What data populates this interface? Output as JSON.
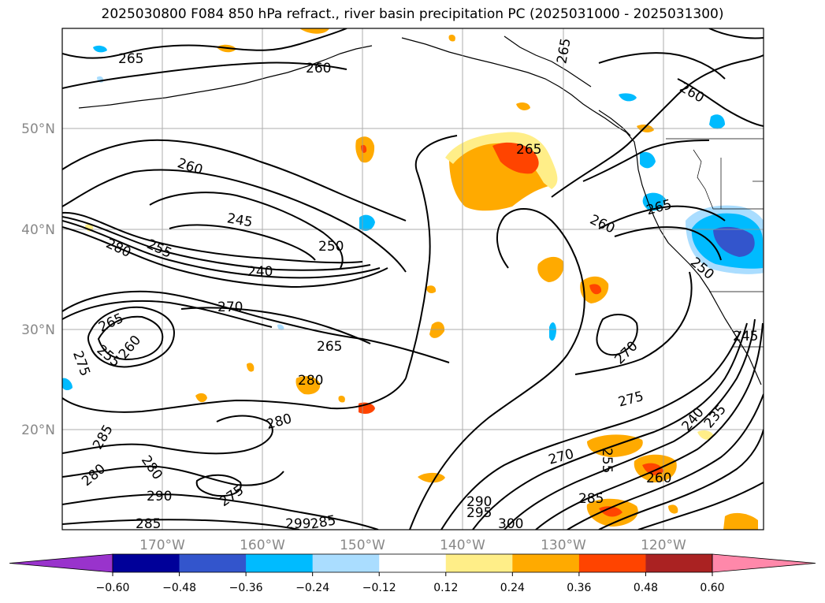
{
  "title": "2025030800 F084 850 hPa refract., river basin precipitation PC (2025031000 - 2025031300)",
  "lat_ticks": [
    "50°N",
    "40°N",
    "30°N",
    "20°N"
  ],
  "lon_ticks": [
    "170°W",
    "160°W",
    "150°W",
    "140°W",
    "130°W",
    "120°W"
  ],
  "contour_labels": [
    "265",
    "260",
    "265",
    "260",
    "260",
    "265",
    "245",
    "250",
    "240",
    "280",
    "255",
    "270",
    "265",
    "260",
    "265",
    "275",
    "255",
    "265",
    "280",
    "260",
    "250",
    "270",
    "245",
    "275",
    "280",
    "240",
    "235",
    "285",
    "280",
    "280",
    "290",
    "275",
    "270",
    "255",
    "260",
    "285",
    "290",
    "295",
    "285",
    "285",
    "299",
    "300"
  ],
  "colorbar": {
    "colors": [
      "#9933cc",
      "#000099",
      "#3355cc",
      "#00bbff",
      "#aaddff",
      "#ffffff",
      "#ffee88",
      "#ffaa00",
      "#ff4400",
      "#aa2222",
      "#ff88aa"
    ],
    "ticks": [
      "−0.60",
      "−0.48",
      "−0.36",
      "−0.24",
      "−0.12",
      "0.12",
      "0.24",
      "0.36",
      "0.48",
      "0.60"
    ]
  }
}
